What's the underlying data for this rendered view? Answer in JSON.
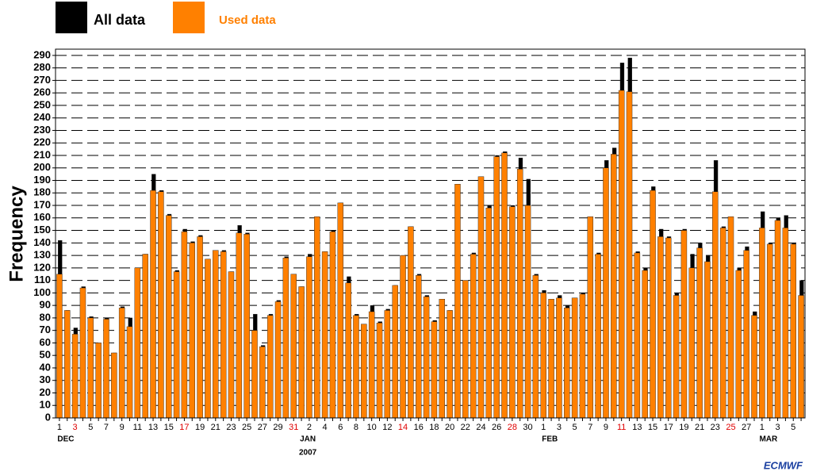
{
  "chart_data": {
    "type": "bar",
    "y_label": "Frequency",
    "logo": "ECMWF",
    "categories": [
      "1",
      null,
      "3",
      null,
      "5",
      null,
      "7",
      null,
      "9",
      null,
      "11",
      null,
      "13",
      null,
      "15",
      null,
      "17",
      null,
      "19",
      null,
      "21",
      null,
      "23",
      null,
      "25",
      null,
      "27",
      null,
      "29",
      null,
      "31",
      null,
      "2",
      null,
      "4",
      null,
      "6",
      null,
      "8",
      null,
      "10",
      null,
      "12",
      null,
      "14",
      null,
      "16",
      null,
      "18",
      null,
      "20",
      null,
      "22",
      null,
      "24",
      null,
      "26",
      null,
      "28",
      null,
      "30",
      null,
      "1",
      null,
      "3",
      null,
      "5",
      null,
      "7",
      null,
      "9",
      null,
      "11",
      null,
      "13",
      null,
      "15",
      null,
      "17",
      null,
      "19",
      null,
      "21",
      null,
      "23",
      null,
      "25",
      null,
      "27",
      null,
      "1",
      null,
      "3",
      null,
      "5",
      null
    ],
    "highlighted": [
      2,
      16,
      30,
      44,
      58,
      72,
      86
    ],
    "highlight_color": "#e00000",
    "months": [
      {
        "label": "DEC",
        "index": 0
      },
      {
        "label": "JAN",
        "index": 31
      },
      {
        "label": "FEB",
        "index": 62
      },
      {
        "label": "MAR",
        "index": 90
      }
    ],
    "year": {
      "label": "2007",
      "index": 31
    },
    "series": [
      {
        "name": "All data",
        "color": "#000000",
        "values": [
          142,
          86,
          72,
          105,
          81,
          60,
          80,
          52,
          89,
          80,
          120,
          131,
          195,
          182,
          163,
          118,
          151,
          141,
          146,
          127,
          134,
          134,
          117,
          154,
          148,
          83,
          58,
          83,
          94,
          129,
          115,
          105,
          131,
          161,
          133,
          150,
          172,
          113,
          83,
          75,
          90,
          77,
          87,
          106,
          130,
          153,
          115,
          98,
          78,
          95,
          86,
          187,
          110,
          132,
          193,
          170,
          210,
          213,
          170,
          208,
          191,
          115,
          102,
          95,
          98,
          90,
          96,
          100,
          161,
          132,
          206,
          216,
          284,
          288,
          133,
          120,
          185,
          151,
          145,
          100,
          151,
          131,
          140,
          130,
          206,
          153,
          161,
          120,
          137,
          85,
          165,
          140,
          160,
          162,
          140,
          110
        ]
      },
      {
        "name": "Used data",
        "color": "#ff8000",
        "values": [
          115,
          86,
          67,
          104,
          80,
          60,
          79,
          52,
          88,
          73,
          120,
          131,
          182,
          181,
          162,
          117,
          149,
          140,
          145,
          127,
          134,
          133,
          117,
          148,
          147,
          70,
          57,
          82,
          93,
          128,
          115,
          105,
          129,
          161,
          133,
          149,
          172,
          108,
          82,
          75,
          85,
          76,
          86,
          106,
          130,
          153,
          114,
          97,
          77,
          95,
          86,
          187,
          110,
          131,
          193,
          168,
          209,
          212,
          169,
          199,
          170,
          114,
          100,
          95,
          96,
          88,
          96,
          99,
          161,
          131,
          200,
          211,
          262,
          261,
          132,
          118,
          182,
          145,
          144,
          98,
          150,
          120,
          136,
          125,
          181,
          152,
          161,
          118,
          134,
          82,
          152,
          139,
          158,
          152,
          139,
          98
        ]
      }
    ],
    "ylim": [
      0,
      295
    ],
    "yticks": [
      0,
      10,
      20,
      30,
      40,
      50,
      60,
      70,
      80,
      90,
      100,
      110,
      120,
      130,
      140,
      150,
      160,
      170,
      180,
      190,
      200,
      210,
      220,
      230,
      240,
      250,
      260,
      270,
      280,
      290
    ],
    "grid": true
  }
}
